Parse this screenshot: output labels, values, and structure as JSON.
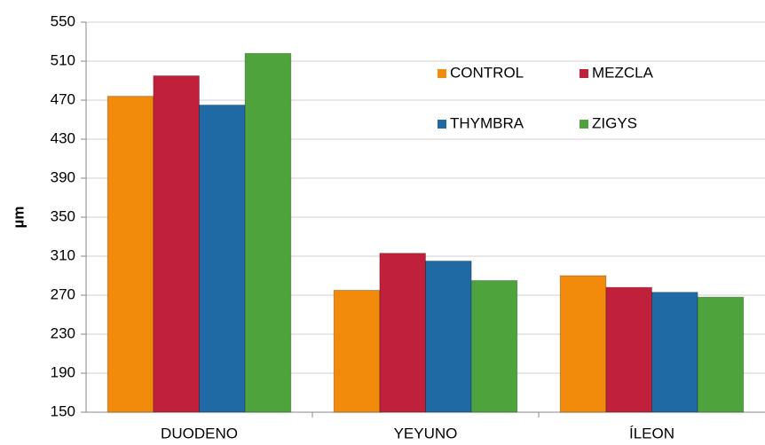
{
  "chart_data": {
    "type": "bar",
    "y_label": "µm",
    "categories": [
      "DUODENO",
      "YEYUNO",
      "ÍLEON"
    ],
    "series": [
      {
        "name": "CONTROL",
        "color": "#f28a0c",
        "values": [
          474,
          275,
          290
        ]
      },
      {
        "name": "MEZCLA",
        "color": "#c0203a",
        "values": [
          495,
          313,
          278
        ]
      },
      {
        "name": "THYMBRA",
        "color": "#1f6aa5",
        "values": [
          465,
          305,
          273
        ]
      },
      {
        "name": "ZIGYS",
        "color": "#4ea33c",
        "values": [
          518,
          285,
          268
        ]
      }
    ],
    "ylim": [
      150,
      550
    ],
    "yticks": [
      150,
      190,
      230,
      270,
      310,
      350,
      390,
      430,
      470,
      510,
      550
    ],
    "grid": true,
    "legend": "upper right"
  }
}
